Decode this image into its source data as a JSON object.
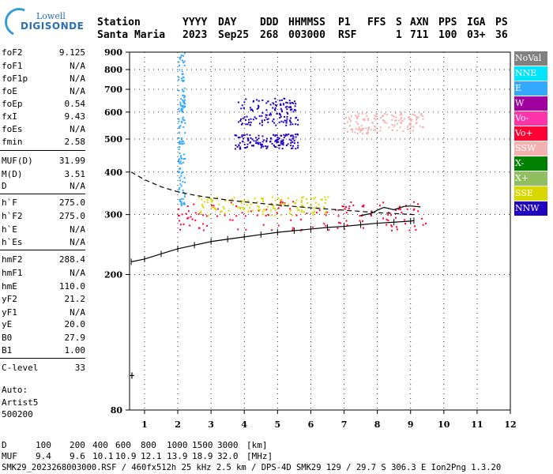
{
  "logo": {
    "line1": "Lowell",
    "line2": "DIGISONDE"
  },
  "header": {
    "labels": [
      "Station",
      "YYYY",
      "DAY",
      "DDD",
      "HHMMSS",
      "P1",
      "FFS",
      "S",
      "AXN",
      "PPS",
      "IGA",
      "PS"
    ],
    "values": [
      "Santa Maria",
      "2023",
      "Sep25",
      "268",
      "003000",
      "RSF",
      "1",
      "711",
      "100",
      "03+",
      "36"
    ]
  },
  "params": [
    {
      "k": "foF2",
      "v": "9.125"
    },
    {
      "k": "foF1",
      "v": "N/A"
    },
    {
      "k": "foF1p",
      "v": "N/A"
    },
    {
      "k": "foE",
      "v": "N/A"
    },
    {
      "k": "foEp",
      "v": "0.54"
    },
    {
      "k": "fxI",
      "v": "9.43"
    },
    {
      "k": "foEs",
      "v": "N/A"
    },
    {
      "k": "fmin",
      "v": "2.58"
    },
    {
      "k": "MUF(D)",
      "v": "31.99"
    },
    {
      "k": "M(D)",
      "v": "3.51"
    },
    {
      "k": "D",
      "v": "N/A"
    },
    {
      "k": "h`F",
      "v": "275.0"
    },
    {
      "k": "h`F2",
      "v": "275.0"
    },
    {
      "k": "h`E",
      "v": "N/A"
    },
    {
      "k": "h`Es",
      "v": "N/A"
    },
    {
      "k": "hmF2",
      "v": "288.4"
    },
    {
      "k": "hmF1",
      "v": "N/A"
    },
    {
      "k": "hmE",
      "v": "110.0"
    },
    {
      "k": "yF2",
      "v": "21.2"
    },
    {
      "k": "yF1",
      "v": "N/A"
    },
    {
      "k": "yE",
      "v": "20.0"
    },
    {
      "k": "B0",
      "v": "27.9"
    },
    {
      "k": "B1",
      "v": "1.00"
    },
    {
      "k": "C-level",
      "v": "33"
    }
  ],
  "auto": {
    "line1": "Auto:",
    "line2": "Artist5",
    "line3": "500200"
  },
  "legend": [
    {
      "label": "NoVal",
      "color": "#808080"
    },
    {
      "label": "NNE",
      "color": "#00e5ff"
    },
    {
      "label": "E",
      "color": "#33a8ff"
    },
    {
      "label": "W",
      "color": "#a000a0"
    },
    {
      "label": "Vo-",
      "color": "#ff33aa"
    },
    {
      "label": "Vo+",
      "color": "#ff0033"
    },
    {
      "label": "SSW",
      "color": "#f5b0b0"
    },
    {
      "label": "X-",
      "color": "#008000"
    },
    {
      "label": "X+",
      "color": "#8fbf5f"
    },
    {
      "label": "SSE",
      "color": "#d8d800"
    },
    {
      "label": "NNW",
      "color": "#2000c0"
    }
  ],
  "footer": {
    "d_label": "D",
    "d_values": [
      "100",
      "200",
      "400",
      "600",
      "800",
      "1000",
      "1500",
      "3000"
    ],
    "d_unit": "[km]",
    "muf_label": "MUF",
    "muf_values": [
      "9.4",
      "9.6",
      "10.1",
      "10.9",
      "12.1",
      "13.9",
      "18.9",
      "32.0"
    ],
    "muf_unit": "[MHz]",
    "file_line": "SMK29_2023268003000.RSF / 460fx512h 25 kHz 2.5 km / DPS-4D SMK29 129 / 29.7 S 306.3 E Ion2Png 1.3.20"
  },
  "chart_data": {
    "type": "scatter",
    "xlabel": "",
    "ylabel": "",
    "xlim": [
      0.55,
      12
    ],
    "ylim": [
      80,
      900
    ],
    "y_scale": "log",
    "x_ticks": [
      1,
      2,
      3,
      4,
      5,
      6,
      7,
      8,
      9,
      10,
      11,
      12
    ],
    "y_ticks": [
      80,
      200,
      300,
      400,
      500,
      600,
      700,
      800,
      900
    ],
    "grid": true,
    "legend_position": "right",
    "traces": [
      {
        "name": "",
        "style": "solid-with-crossticks",
        "x": [
          0.6,
          1.0,
          1.5,
          2.0,
          2.5,
          3.0,
          3.5,
          4.0,
          4.5,
          5.0,
          5.5,
          6.0,
          6.5,
          7.0,
          7.5,
          8.0,
          8.5,
          9.0,
          9.1
        ],
        "y": [
          218,
          222,
          230,
          238,
          244,
          250,
          254,
          258,
          262,
          266,
          269,
          272,
          275,
          277,
          280,
          283,
          285,
          287,
          288
        ]
      },
      {
        "name": "",
        "style": "dashed",
        "x": [
          0.6,
          1.0,
          1.5,
          2.0,
          2.5,
          3.0,
          3.5,
          4.0,
          5.0,
          6.0,
          7.0,
          8.0,
          9.1
        ],
        "y": [
          400,
          380,
          362,
          350,
          342,
          336,
          331,
          327,
          320,
          314,
          309,
          304,
          300
        ]
      },
      {
        "name": "",
        "style": "solid",
        "x": [
          7.5,
          7.8,
          8.0,
          8.2,
          8.5,
          8.8,
          9.0,
          9.3
        ],
        "y": [
          298,
          302,
          309,
          315,
          310,
          317,
          318,
          316
        ]
      }
    ],
    "point_clusters": [
      {
        "color_key": "NNW",
        "x": [
          3.7,
          5.6
        ],
        "y": [
          470,
          520
        ]
      },
      {
        "color_key": "NNW",
        "x": [
          3.8,
          5.6
        ],
        "y": [
          550,
          665
        ]
      },
      {
        "color_key": "E",
        "x": [
          2.0,
          2.2
        ],
        "y": [
          320,
          900
        ]
      },
      {
        "color_key": "Vo+",
        "x": [
          2.0,
          9.5
        ],
        "y": [
          270,
          330
        ]
      },
      {
        "color_key": "SSE",
        "x": [
          2.6,
          6.5
        ],
        "y": [
          300,
          340
        ]
      },
      {
        "color_key": "SSW",
        "x": [
          7.0,
          9.4
        ],
        "y": [
          520,
          600
        ]
      }
    ],
    "marker_point": {
      "x": 0.62,
      "y": 101
    }
  }
}
